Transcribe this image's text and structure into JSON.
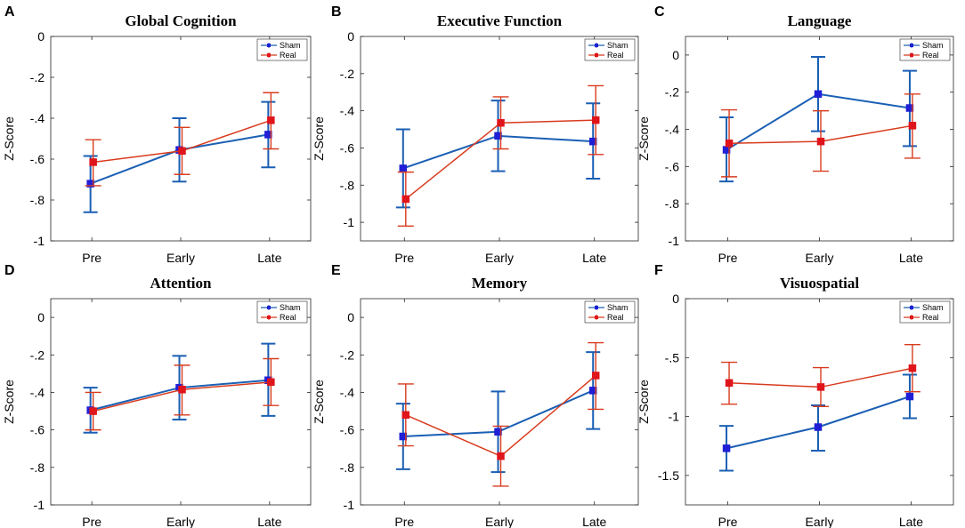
{
  "figure": {
    "series_colors": {
      "Sham": "#1a5fb4",
      "Real": "#d83b1e"
    },
    "marker_colors": {
      "Sham": "#1f1fd6",
      "Real": "#e0141b"
    }
  },
  "chart_data": [
    {
      "panel": "A",
      "type": "line",
      "title": "Global Cognition",
      "ylabel": "Z-Score",
      "xlabel": "",
      "categories": [
        "Pre",
        "Early",
        "Late"
      ],
      "ylim": [
        -1,
        0
      ],
      "yticks": [
        0,
        -0.2,
        -0.4,
        -0.6,
        -0.8,
        -1
      ],
      "legend": [
        "Sham",
        "Real"
      ],
      "series": [
        {
          "name": "Sham",
          "values": [
            -0.72,
            -0.555,
            -0.48
          ],
          "err_low": [
            -0.86,
            -0.71,
            -0.64
          ],
          "err_high": [
            -0.585,
            -0.4,
            -0.32
          ]
        },
        {
          "name": "Real",
          "values": [
            -0.615,
            -0.56,
            -0.41
          ],
          "err_low": [
            -0.73,
            -0.675,
            -0.55
          ],
          "err_high": [
            -0.505,
            -0.445,
            -0.275
          ]
        }
      ]
    },
    {
      "panel": "B",
      "type": "line",
      "title": "Executive Function",
      "ylabel": "Z-Score",
      "xlabel": "",
      "categories": [
        "Pre",
        "Early",
        "Late"
      ],
      "ylim": [
        -1.1,
        0
      ],
      "yticks": [
        0,
        -0.2,
        -0.4,
        -0.6,
        -0.8,
        -1
      ],
      "legend": [
        "Sham",
        "Real"
      ],
      "series": [
        {
          "name": "Sham",
          "values": [
            -0.71,
            -0.535,
            -0.565
          ],
          "err_low": [
            -0.92,
            -0.725,
            -0.765
          ],
          "err_high": [
            -0.5,
            -0.345,
            -0.36
          ]
        },
        {
          "name": "Real",
          "values": [
            -0.875,
            -0.465,
            -0.45
          ],
          "err_low": [
            -1.02,
            -0.605,
            -0.635
          ],
          "err_high": [
            -0.73,
            -0.325,
            -0.265
          ]
        }
      ]
    },
    {
      "panel": "C",
      "type": "line",
      "title": "Language",
      "ylabel": "Z-Score",
      "xlabel": "",
      "categories": [
        "Pre",
        "Early",
        "Late"
      ],
      "ylim": [
        -1,
        0.1
      ],
      "yticks": [
        0,
        -0.2,
        -0.4,
        -0.6,
        -0.8,
        -1
      ],
      "legend": [
        "Sham",
        "Real"
      ],
      "series": [
        {
          "name": "Sham",
          "values": [
            -0.51,
            -0.21,
            -0.285
          ],
          "err_low": [
            -0.68,
            -0.41,
            -0.49
          ],
          "err_high": [
            -0.335,
            -0.01,
            -0.085
          ]
        },
        {
          "name": "Real",
          "values": [
            -0.475,
            -0.465,
            -0.38
          ],
          "err_low": [
            -0.655,
            -0.625,
            -0.555
          ],
          "err_high": [
            -0.295,
            -0.3,
            -0.21
          ]
        }
      ]
    },
    {
      "panel": "D",
      "type": "line",
      "title": "Attention",
      "ylabel": "Z-Score",
      "xlabel": "",
      "categories": [
        "Pre",
        "Early",
        "Late"
      ],
      "ylim": [
        -1,
        0.1
      ],
      "yticks": [
        0,
        -0.2,
        -0.4,
        -0.6,
        -0.8,
        -1
      ],
      "legend": [
        "Sham",
        "Real"
      ],
      "series": [
        {
          "name": "Sham",
          "values": [
            -0.495,
            -0.375,
            -0.335
          ],
          "err_low": [
            -0.615,
            -0.545,
            -0.525
          ],
          "err_high": [
            -0.375,
            -0.205,
            -0.14
          ]
        },
        {
          "name": "Real",
          "values": [
            -0.5,
            -0.385,
            -0.345
          ],
          "err_low": [
            -0.6,
            -0.52,
            -0.47
          ],
          "err_high": [
            -0.4,
            -0.255,
            -0.22
          ]
        }
      ]
    },
    {
      "panel": "E",
      "type": "line",
      "title": "Memory",
      "ylabel": "Z-Score",
      "xlabel": "",
      "categories": [
        "Pre",
        "Early",
        "Late"
      ],
      "ylim": [
        -1,
        0.1
      ],
      "yticks": [
        0,
        -0.2,
        -0.4,
        -0.6,
        -0.8,
        -1
      ],
      "legend": [
        "Sham",
        "Real"
      ],
      "series": [
        {
          "name": "Sham",
          "values": [
            -0.635,
            -0.61,
            -0.39
          ],
          "err_low": [
            -0.81,
            -0.825,
            -0.595
          ],
          "err_high": [
            -0.46,
            -0.395,
            -0.185
          ]
        },
        {
          "name": "Real",
          "values": [
            -0.52,
            -0.74,
            -0.31
          ],
          "err_low": [
            -0.685,
            -0.9,
            -0.49
          ],
          "err_high": [
            -0.355,
            -0.58,
            -0.135
          ]
        }
      ]
    },
    {
      "panel": "F",
      "type": "line",
      "title": "Visuospatial",
      "ylabel": "Z-Score",
      "xlabel": "",
      "categories": [
        "Pre",
        "Early",
        "Late"
      ],
      "ylim": [
        -1.75,
        0
      ],
      "yticks": [
        0,
        -0.5,
        -1,
        -1.5
      ],
      "legend": [
        "Sham",
        "Real"
      ],
      "series": [
        {
          "name": "Sham",
          "values": [
            -1.27,
            -1.09,
            -0.83
          ],
          "err_low": [
            -1.46,
            -1.29,
            -1.015
          ],
          "err_high": [
            -1.08,
            -0.905,
            -0.645
          ]
        },
        {
          "name": "Real",
          "values": [
            -0.715,
            -0.75,
            -0.59
          ],
          "err_low": [
            -0.895,
            -0.915,
            -0.79
          ],
          "err_high": [
            -0.54,
            -0.585,
            -0.39
          ]
        }
      ]
    }
  ]
}
